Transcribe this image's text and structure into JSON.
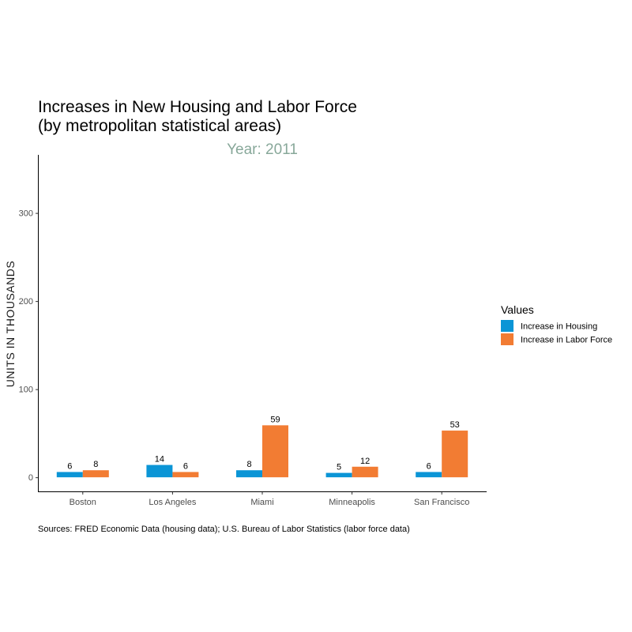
{
  "chart_data": {
    "type": "bar",
    "title_line1": "Increases in New Housing and Labor Force",
    "title_line2": "(by metropolitan statistical areas)",
    "subtitle": "Year: 2011",
    "ylabel": "UNITS IN THOUSANDS",
    "xlabel": "",
    "categories": [
      "Boston",
      "Los Angeles",
      "Miami",
      "Minneapolis",
      "San Francisco"
    ],
    "series": [
      {
        "name": "Increase in Housing",
        "values": [
          6,
          14,
          8,
          5,
          6
        ],
        "color": "#0b95d6"
      },
      {
        "name": "Increase in Labor Force",
        "values": [
          8,
          6,
          59,
          12,
          53
        ],
        "color": "#f27c33"
      }
    ],
    "ylim": [
      -16,
      366
    ],
    "yticks": [
      0,
      100,
      200,
      300
    ],
    "legend_title": "Values",
    "legend_position": "right",
    "grid": false,
    "caption": "Sources: FRED Economic Data (housing data); U.S. Bureau of Labor Statistics (labor force data)",
    "subtitle_color": "#88a89a"
  }
}
